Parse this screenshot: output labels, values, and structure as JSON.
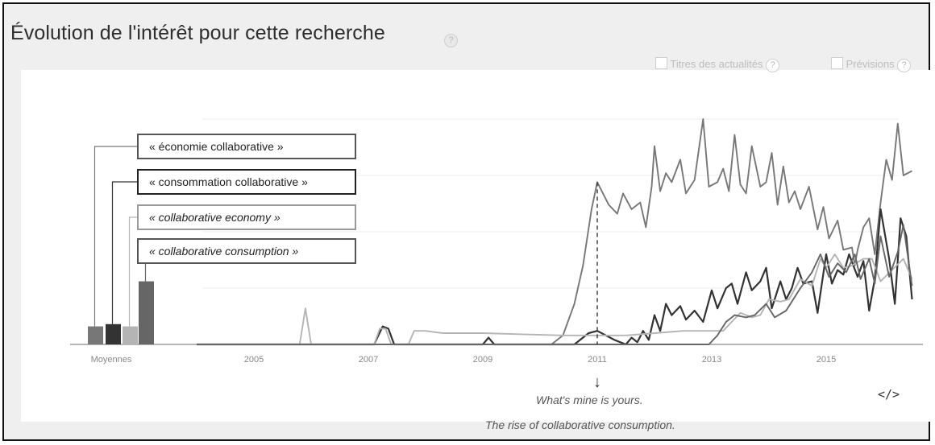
{
  "title": "Évolution de l'intérêt pour cette recherche",
  "help_glyph": "?",
  "options": [
    {
      "label": "Titres des actualités",
      "checked": false
    },
    {
      "label": "Prévisions",
      "checked": false
    }
  ],
  "embed_label": "</>",
  "annotation": {
    "arrow": "↓",
    "line1": "What's mine is yours.",
    "line2": "The rise of collaborative consumption."
  },
  "chart_data": {
    "type": "line",
    "xlabel": "",
    "ylabel": "",
    "x_ticks": [
      "2005",
      "2007",
      "2009",
      "2011",
      "2013",
      "2015"
    ],
    "averages_label": "Moyennes",
    "ylim": [
      0,
      100
    ],
    "grid": true,
    "series": [
      {
        "name": "« économie collaborative »",
        "color": "#777777",
        "average": 8,
        "points": [
          [
            2004.0,
            0
          ],
          [
            2010.2,
            0
          ],
          [
            2010.4,
            4
          ],
          [
            2010.6,
            18
          ],
          [
            2010.75,
            35
          ],
          [
            2010.9,
            60
          ],
          [
            2011.0,
            72
          ],
          [
            2011.2,
            62
          ],
          [
            2011.35,
            58
          ],
          [
            2011.45,
            67
          ],
          [
            2011.6,
            60
          ],
          [
            2011.75,
            63
          ],
          [
            2011.85,
            52
          ],
          [
            2011.95,
            70
          ],
          [
            2012.0,
            88
          ],
          [
            2012.1,
            68
          ],
          [
            2012.2,
            76
          ],
          [
            2012.3,
            72
          ],
          [
            2012.45,
            82
          ],
          [
            2012.55,
            67
          ],
          [
            2012.7,
            73
          ],
          [
            2012.85,
            100
          ],
          [
            2012.95,
            70
          ],
          [
            2013.1,
            72
          ],
          [
            2013.2,
            78
          ],
          [
            2013.3,
            68
          ],
          [
            2013.4,
            93
          ],
          [
            2013.5,
            71
          ],
          [
            2013.6,
            67
          ],
          [
            2013.7,
            88
          ],
          [
            2013.85,
            70
          ],
          [
            2013.95,
            72
          ],
          [
            2014.05,
            85
          ],
          [
            2014.15,
            62
          ],
          [
            2014.25,
            79
          ],
          [
            2014.35,
            63
          ],
          [
            2014.45,
            68
          ],
          [
            2014.55,
            60
          ],
          [
            2014.7,
            70
          ],
          [
            2014.85,
            51
          ],
          [
            2014.95,
            61
          ],
          [
            2015.05,
            47
          ],
          [
            2015.2,
            55
          ],
          [
            2015.3,
            42
          ],
          [
            2015.45,
            43
          ],
          [
            2015.5,
            35
          ],
          [
            2015.55,
            42
          ],
          [
            2015.65,
            52
          ],
          [
            2015.75,
            56
          ],
          [
            2015.85,
            40
          ],
          [
            2015.95,
            63
          ],
          [
            2016.05,
            82
          ],
          [
            2016.15,
            73
          ],
          [
            2016.25,
            98
          ],
          [
            2016.35,
            75
          ],
          [
            2016.5,
            77
          ]
        ]
      },
      {
        "name": "« consommation collaborative »",
        "color": "#333333",
        "average": 9,
        "points": [
          [
            2004.0,
            0
          ],
          [
            2007.1,
            0
          ],
          [
            2007.25,
            8
          ],
          [
            2007.35,
            7
          ],
          [
            2007.45,
            0
          ],
          [
            2009.0,
            0
          ],
          [
            2009.1,
            3
          ],
          [
            2009.2,
            0
          ],
          [
            2010.6,
            0
          ],
          [
            2010.85,
            5
          ],
          [
            2011.0,
            6
          ],
          [
            2011.3,
            2
          ],
          [
            2011.5,
            0
          ],
          [
            2011.6,
            3
          ],
          [
            2011.7,
            1
          ],
          [
            2011.8,
            6
          ],
          [
            2011.9,
            2
          ],
          [
            2012.0,
            13
          ],
          [
            2012.1,
            6
          ],
          [
            2012.2,
            18
          ],
          [
            2012.3,
            13
          ],
          [
            2012.45,
            17
          ],
          [
            2012.55,
            11
          ],
          [
            2012.7,
            15
          ],
          [
            2012.85,
            10
          ],
          [
            2013.0,
            24
          ],
          [
            2013.1,
            16
          ],
          [
            2013.25,
            25
          ],
          [
            2013.35,
            27
          ],
          [
            2013.45,
            18
          ],
          [
            2013.6,
            32
          ],
          [
            2013.7,
            24
          ],
          [
            2013.85,
            28
          ],
          [
            2013.95,
            34
          ],
          [
            2014.05,
            16
          ],
          [
            2014.2,
            28
          ],
          [
            2014.3,
            20
          ],
          [
            2014.4,
            25
          ],
          [
            2014.5,
            34
          ],
          [
            2014.6,
            27
          ],
          [
            2014.75,
            28
          ],
          [
            2014.85,
            14
          ],
          [
            2015.0,
            40
          ],
          [
            2015.1,
            27
          ],
          [
            2015.2,
            33
          ],
          [
            2015.3,
            31
          ],
          [
            2015.4,
            40
          ],
          [
            2015.55,
            30
          ],
          [
            2015.65,
            37
          ],
          [
            2015.75,
            15
          ],
          [
            2015.85,
            29
          ],
          [
            2015.95,
            60
          ],
          [
            2016.1,
            38
          ],
          [
            2016.2,
            18
          ],
          [
            2016.3,
            56
          ],
          [
            2016.4,
            48
          ],
          [
            2016.5,
            20
          ]
        ]
      },
      {
        "name": "« collaborative economy »",
        "color": "#b4b4b4",
        "average": 8,
        "points": [
          [
            2004.0,
            0
          ],
          [
            2005.8,
            0
          ],
          [
            2005.9,
            16
          ],
          [
            2006.0,
            0
          ],
          [
            2007.1,
            0
          ],
          [
            2007.2,
            7
          ],
          [
            2007.3,
            7
          ],
          [
            2007.4,
            0
          ],
          [
            2007.7,
            0
          ],
          [
            2007.8,
            6
          ],
          [
            2008.0,
            6
          ],
          [
            2008.3,
            5
          ],
          [
            2009.0,
            5
          ],
          [
            2010.4,
            4
          ],
          [
            2010.8,
            4
          ],
          [
            2011.0,
            4
          ],
          [
            2011.5,
            4
          ],
          [
            2012.0,
            5
          ],
          [
            2012.5,
            6
          ],
          [
            2012.9,
            6
          ],
          [
            2013.2,
            6
          ],
          [
            2013.35,
            10
          ],
          [
            2013.5,
            14
          ],
          [
            2013.7,
            12
          ],
          [
            2013.85,
            13
          ],
          [
            2014.0,
            20
          ],
          [
            2014.2,
            19
          ],
          [
            2014.35,
            20
          ],
          [
            2014.55,
            29
          ],
          [
            2014.75,
            26
          ],
          [
            2014.9,
            38
          ],
          [
            2015.0,
            34
          ],
          [
            2015.15,
            40
          ],
          [
            2015.3,
            34
          ],
          [
            2015.45,
            35
          ],
          [
            2015.65,
            38
          ],
          [
            2015.8,
            38
          ],
          [
            2015.95,
            28
          ],
          [
            2016.15,
            33
          ],
          [
            2016.35,
            38
          ],
          [
            2016.5,
            29
          ]
        ]
      },
      {
        "name": "« collaborative consumption »",
        "color": "#666666",
        "average": 28,
        "points": [
          [
            2004.0,
            0
          ],
          [
            2012.95,
            0
          ],
          [
            2013.1,
            4
          ],
          [
            2013.25,
            10
          ],
          [
            2013.4,
            13
          ],
          [
            2013.6,
            12
          ],
          [
            2013.75,
            13
          ],
          [
            2013.95,
            18
          ],
          [
            2014.1,
            12
          ],
          [
            2014.3,
            15
          ],
          [
            2014.55,
            25
          ],
          [
            2014.75,
            32
          ],
          [
            2014.9,
            40
          ],
          [
            2015.05,
            30
          ],
          [
            2015.2,
            36
          ],
          [
            2015.35,
            32
          ],
          [
            2015.5,
            40
          ],
          [
            2015.6,
            29
          ],
          [
            2015.75,
            38
          ],
          [
            2015.85,
            27
          ],
          [
            2015.95,
            48
          ],
          [
            2016.1,
            30
          ],
          [
            2016.25,
            41
          ],
          [
            2016.35,
            53
          ],
          [
            2016.5,
            26
          ]
        ]
      }
    ],
    "annotation_x": 2011
  }
}
